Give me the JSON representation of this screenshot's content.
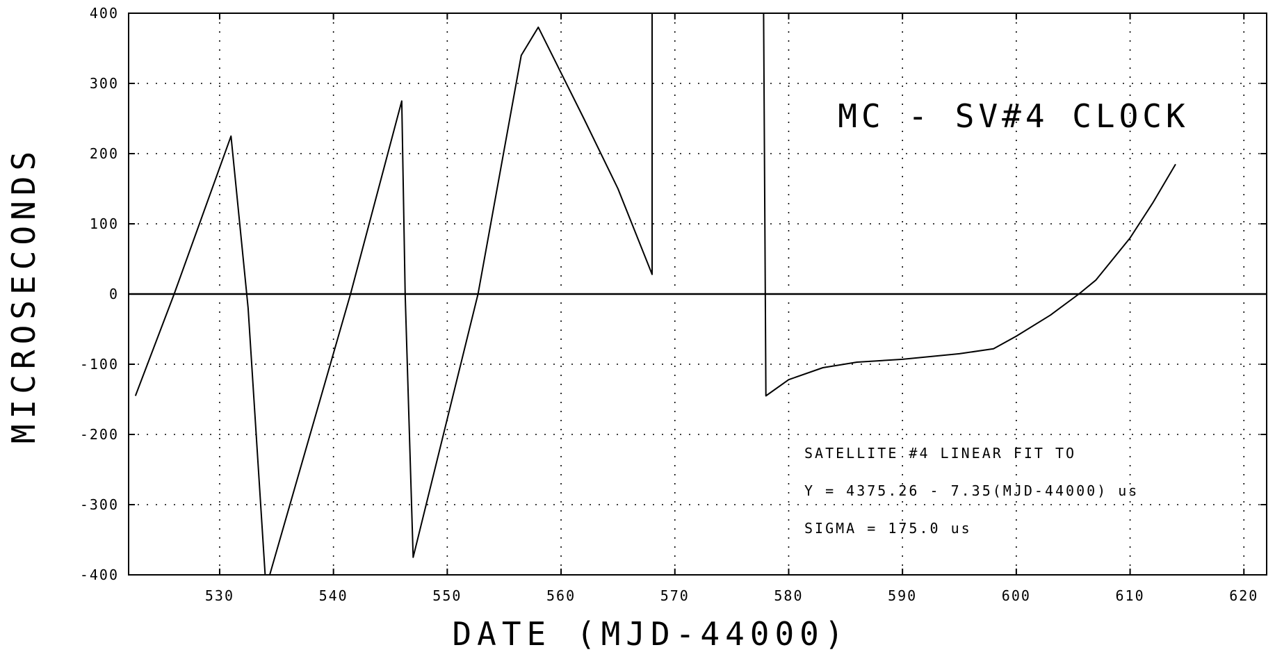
{
  "chart_data": {
    "type": "line",
    "title": "MC - SV#4 CLOCK",
    "xlabel": "DATE (MJD-44000)",
    "ylabel": "MICROSECONDS",
    "xlim": [
      522,
      622
    ],
    "ylim": [
      -400,
      400
    ],
    "xticks": [
      530,
      540,
      550,
      560,
      570,
      580,
      590,
      600,
      610,
      620
    ],
    "yticks": [
      -400,
      -300,
      -200,
      -100,
      0,
      100,
      200,
      300,
      400
    ],
    "xtick_labels": [
      "530",
      "540",
      "550",
      "560",
      "570",
      "580",
      "590",
      "600",
      "610",
      "620"
    ],
    "ytick_labels": [
      "-400",
      "-300",
      "-200",
      "-100",
      "0",
      "100",
      "200",
      "300",
      "400"
    ],
    "grid": true,
    "annotations": [
      "SATELLITE #4 LINEAR FIT TO",
      "Y = 4375.26 - 7.35(MJD-44000) us",
      "SIGMA = 175.0 us"
    ],
    "series": [
      {
        "segments": [
          [
            [
              522.6,
              -145
            ],
            [
              526,
              0
            ],
            [
              531,
              225
            ],
            [
              532.5,
              -20
            ],
            [
              534,
              -400
            ]
          ],
          [
            [
              534.4,
              -400
            ],
            [
              541.5,
              0
            ],
            [
              546,
              275
            ],
            [
              546.3,
              0
            ],
            [
              547,
              -375
            ],
            [
              552.7,
              0
            ],
            [
              556.5,
              340
            ],
            [
              558,
              380
            ],
            [
              562,
              250
            ],
            [
              565,
              150
            ],
            [
              568,
              28
            ],
            [
              568,
              400
            ]
          ],
          [
            [
              577.8,
              400
            ],
            [
              578,
              -145
            ],
            [
              580,
              -122
            ],
            [
              583,
              -105
            ],
            [
              586,
              -97
            ],
            [
              590,
              -93
            ],
            [
              595,
              -85
            ],
            [
              598,
              -78
            ],
            [
              600,
              -60
            ],
            [
              603,
              -30
            ],
            [
              605.5,
              0
            ],
            [
              607,
              20
            ],
            [
              610,
              80
            ],
            [
              612,
              130
            ],
            [
              614,
              185
            ]
          ]
        ]
      }
    ]
  }
}
